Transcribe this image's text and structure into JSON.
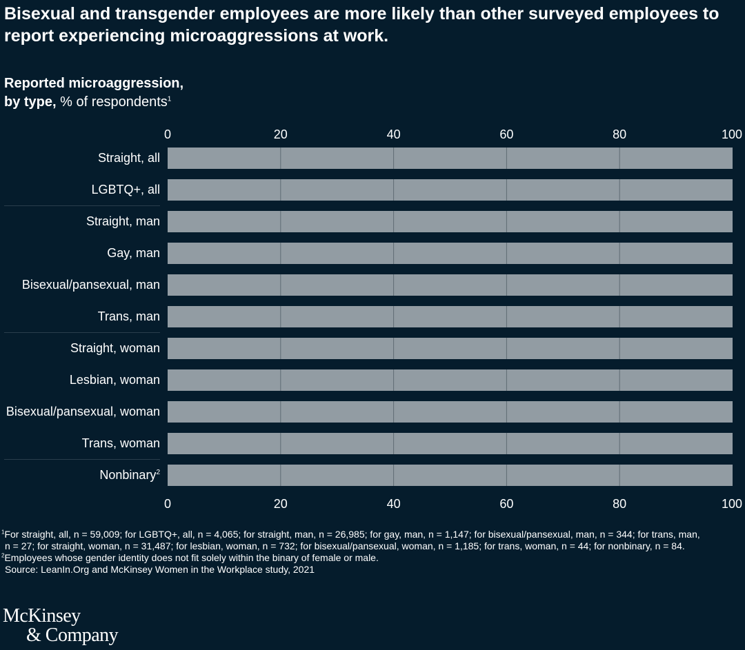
{
  "header": {
    "title": "Bisexual and transgender employees are more likely than other surveyed employees to report experiencing microaggressions at work.",
    "subtitle_bold_1": "Reported microaggression,",
    "subtitle_bold_2": "by type,",
    "subtitle_rest": " % of respondents",
    "subtitle_footnote": "1"
  },
  "chart_data": {
    "type": "bar",
    "orientation": "horizontal",
    "title": "Reported microaggression, by type, % of respondents",
    "xlabel": "",
    "ylabel": "",
    "xlim": [
      0,
      100
    ],
    "x_ticks": [
      "0",
      "20",
      "40",
      "60",
      "80",
      "100"
    ],
    "x_tick_values": [
      0,
      20,
      40,
      60,
      80,
      100
    ],
    "x_axis_positions": [
      "top",
      "bottom"
    ],
    "grid": true,
    "categories": [
      {
        "label": "Straight, all",
        "sup": ""
      },
      {
        "label": "LGBTQ+, all",
        "sup": ""
      },
      {
        "label": "Straight, man",
        "sup": ""
      },
      {
        "label": "Gay, man",
        "sup": ""
      },
      {
        "label": "Bisexual/pansexual, man",
        "sup": ""
      },
      {
        "label": "Trans, man",
        "sup": ""
      },
      {
        "label": "Straight, woman",
        "sup": ""
      },
      {
        "label": "Lesbian, woman",
        "sup": ""
      },
      {
        "label": "Bisexual/pansexual, woman",
        "sup": ""
      },
      {
        "label": "Trans, woman",
        "sup": ""
      },
      {
        "label": "Nonbinary",
        "sup": "2"
      }
    ],
    "group_separators_after": [
      1,
      5,
      9
    ],
    "values": [
      100,
      100,
      100,
      100,
      100,
      100,
      100,
      100,
      100,
      100,
      100
    ],
    "bar_color": "#929ca3",
    "gridline_color": "#5f6b74",
    "background_color": "#051c2c"
  },
  "footnotes": {
    "note1_sup": "1",
    "note1_line1": "For straight, all, n = 59,009; for LGBTQ+, all, n = 4,065; for straight, man, n = 26,985; for gay, man, n = 1,147; for bisexual/pansexual, man, n = 344; for trans, man,",
    "note1_line2": "n = 27; for straight, woman, n = 31,487; for lesbian, woman, n = 732; for bisexual/pansexual, woman, n = 1,185; for trans, woman, n = 44; for nonbinary, n = 84.",
    "note2_sup": "2",
    "note2": "Employees whose gender identity does not fit solely within the binary of female or male.",
    "source": "Source: LeanIn.Org and McKinsey Women in the Workplace study, 2021"
  },
  "logo": {
    "line1": "McKinsey",
    "line2": "& Company"
  }
}
